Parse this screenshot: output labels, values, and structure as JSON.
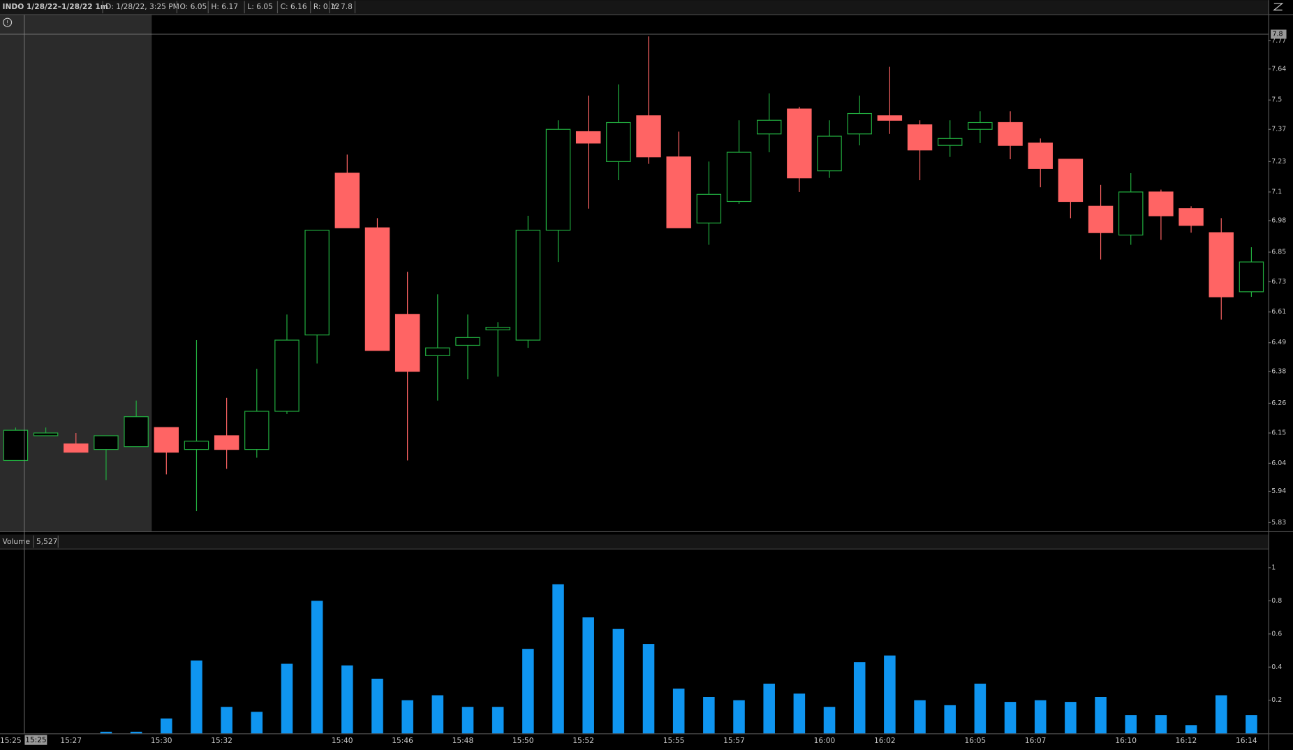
{
  "header": {
    "title": "INDO 1/28/22–1/28/22 1m",
    "fields": [
      "D: 1/28/22, 3:25 PM",
      "O: 6.05",
      "H: 6.17",
      "L: 6.05",
      "C: 6.16",
      "R: 0.12",
      "Y: 7.8"
    ]
  },
  "crosshair": {
    "y": 7.8,
    "x_label": "15:25"
  },
  "chart_data": [
    {
      "type": "candlestick",
      "log": true,
      "categories": [
        "15:25",
        null,
        "15:27",
        null,
        null,
        "15:30",
        null,
        "15:32",
        null,
        null,
        null,
        "15:40",
        null,
        "15:46",
        null,
        "15:48",
        null,
        "15:50",
        null,
        "15:52",
        null,
        null,
        "15:55",
        null,
        "15:57",
        null,
        null,
        "16:00",
        null,
        "16:02",
        null,
        null,
        "16:05",
        null,
        "16:07",
        null,
        null,
        "16:10",
        null,
        "16:12",
        null,
        "16:14"
      ],
      "open": [
        6.05,
        6.14,
        6.11,
        6.09,
        6.1,
        6.17,
        6.09,
        6.14,
        6.09,
        6.23,
        6.52,
        7.18,
        6.95,
        6.6,
        6.44,
        6.48,
        6.54,
        6.5,
        6.94,
        7.36,
        7.23,
        7.43,
        7.25,
        6.97,
        7.06,
        7.35,
        7.46,
        7.19,
        7.35,
        7.43,
        7.39,
        7.3,
        7.37,
        7.4,
        7.31,
        7.24,
        7.04,
        6.92,
        7.1,
        7.03,
        6.93,
        6.69
      ],
      "high": [
        6.17,
        6.17,
        6.15,
        6.14,
        6.27,
        6.17,
        6.5,
        6.28,
        6.39,
        6.6,
        6.94,
        7.26,
        6.99,
        6.77,
        6.68,
        6.6,
        6.57,
        7.0,
        7.41,
        7.52,
        7.57,
        7.79,
        7.36,
        7.23,
        7.41,
        7.53,
        7.47,
        7.41,
        7.52,
        7.65,
        7.41,
        7.41,
        7.45,
        7.45,
        7.33,
        7.24,
        7.13,
        7.18,
        7.11,
        7.04,
        6.99,
        6.87
      ],
      "low": [
        6.05,
        6.14,
        6.08,
        5.98,
        6.1,
        6.0,
        5.87,
        6.02,
        6.06,
        6.22,
        6.41,
        6.95,
        6.46,
        6.05,
        6.27,
        6.35,
        6.36,
        6.47,
        6.81,
        7.03,
        7.15,
        7.22,
        6.95,
        6.88,
        7.05,
        7.27,
        7.1,
        7.16,
        7.3,
        7.35,
        7.15,
        7.25,
        7.31,
        7.24,
        7.12,
        6.99,
        6.82,
        6.88,
        6.9,
        6.93,
        6.58,
        6.67
      ],
      "close": [
        6.16,
        6.15,
        6.08,
        6.14,
        6.21,
        6.08,
        6.12,
        6.09,
        6.23,
        6.5,
        6.94,
        6.95,
        6.46,
        6.38,
        6.47,
        6.51,
        6.55,
        6.94,
        7.37,
        7.31,
        7.4,
        7.25,
        6.95,
        7.09,
        7.27,
        7.41,
        7.16,
        7.34,
        7.44,
        7.41,
        7.28,
        7.33,
        7.4,
        7.3,
        7.2,
        7.06,
        6.93,
        7.1,
        7.0,
        6.96,
        6.67,
        6.81
      ],
      "up_color": "#22b040",
      "down_color": "#ff6464",
      "ylim": [
        5.8,
        7.89
      ],
      "yticks": [
        5.83,
        5.94,
        6.04,
        6.15,
        6.26,
        6.38,
        6.49,
        6.61,
        6.73,
        6.85,
        6.98,
        7.1,
        7.23,
        7.37,
        7.5,
        7.64,
        7.77
      ]
    },
    {
      "type": "bar",
      "title": "Volume",
      "readout": "5,527",
      "color": "#0f95f0",
      "values": [
        0,
        0,
        0,
        0.01,
        0.01,
        0.09,
        0.44,
        0.16,
        0.13,
        0.42,
        0.8,
        0.41,
        0.33,
        0.2,
        0.23,
        0.16,
        0.16,
        0.51,
        0.9,
        0.7,
        0.63,
        0.54,
        0.27,
        0.22,
        0.2,
        0.3,
        0.24,
        0.16,
        0.43,
        0.47,
        0.2,
        0.17,
        0.3,
        0.19,
        0.2,
        0.19,
        0.22,
        0.11,
        0.11,
        0.05,
        0.23,
        0.11
      ],
      "ylim": [
        0,
        1.1
      ],
      "yticks": [
        0.2,
        0.4,
        0.6,
        0.8,
        1
      ]
    }
  ]
}
